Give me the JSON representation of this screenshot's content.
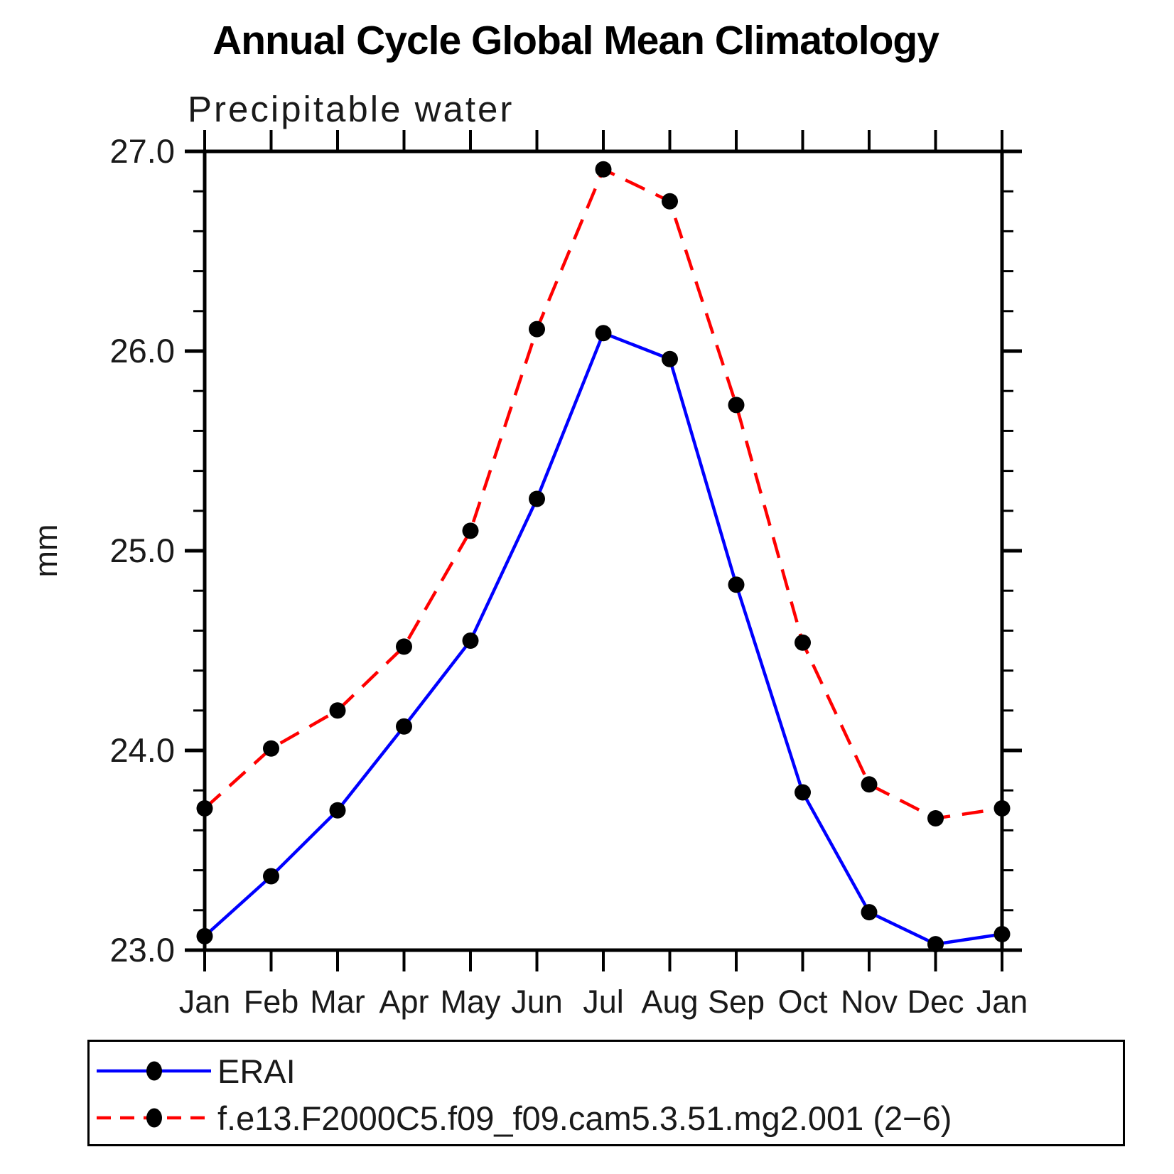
{
  "title": "Annual Cycle Global Mean Climatology",
  "subtitle": "Precipitable water",
  "y_axis": {
    "label": "mm",
    "tick_labels": [
      "27.0",
      "26.0",
      "25.0",
      "24.0",
      "23.0"
    ]
  },
  "x_axis": {
    "tick_labels": [
      "Jan",
      "Feb",
      "Mar",
      "Apr",
      "May",
      "Jun",
      "Jul",
      "Aug",
      "Sep",
      "Oct",
      "Nov",
      "Dec",
      "Jan"
    ]
  },
  "colors": {
    "erai_line": "#0000ff",
    "model_line": "#ff0000",
    "marker": "#000000",
    "axis": "#000000"
  },
  "legend": {
    "entries": [
      {
        "label": "ERAI",
        "style": "solid",
        "color": "#0000ff"
      },
      {
        "label": "f.e13.F2000C5.f09_f09.cam5.3.51.mg2.001 (2−6)",
        "style": "dashed",
        "color": "#ff0000"
      }
    ]
  },
  "chart_data": {
    "type": "line",
    "title": "Annual Cycle Global Mean Climatology",
    "subtitle": "Precipitable water",
    "xlabel": "",
    "ylabel": "mm",
    "ylim": [
      23.0,
      27.0
    ],
    "y_major_tick_step": 1.0,
    "y_minor_tick_step": 0.2,
    "grid": false,
    "legend_position": "bottom",
    "categories": [
      "Jan",
      "Feb",
      "Mar",
      "Apr",
      "May",
      "Jun",
      "Jul",
      "Aug",
      "Sep",
      "Oct",
      "Nov",
      "Dec",
      "Jan"
    ],
    "series": [
      {
        "name": "ERAI",
        "color": "#0000ff",
        "style": "solid",
        "marker": "filled-circle",
        "marker_color": "#000000",
        "values": [
          23.07,
          23.37,
          23.7,
          24.12,
          24.55,
          25.26,
          26.09,
          25.96,
          24.83,
          23.79,
          23.19,
          23.03,
          23.08
        ]
      },
      {
        "name": "f.e13.F2000C5.f09_f09.cam5.3.51.mg2.001 (2−6)",
        "color": "#ff0000",
        "style": "dashed",
        "marker": "filled-circle",
        "marker_color": "#000000",
        "values": [
          23.71,
          24.01,
          24.2,
          24.52,
          25.1,
          26.11,
          26.91,
          26.75,
          25.73,
          24.54,
          23.83,
          23.66,
          23.71
        ]
      }
    ]
  }
}
